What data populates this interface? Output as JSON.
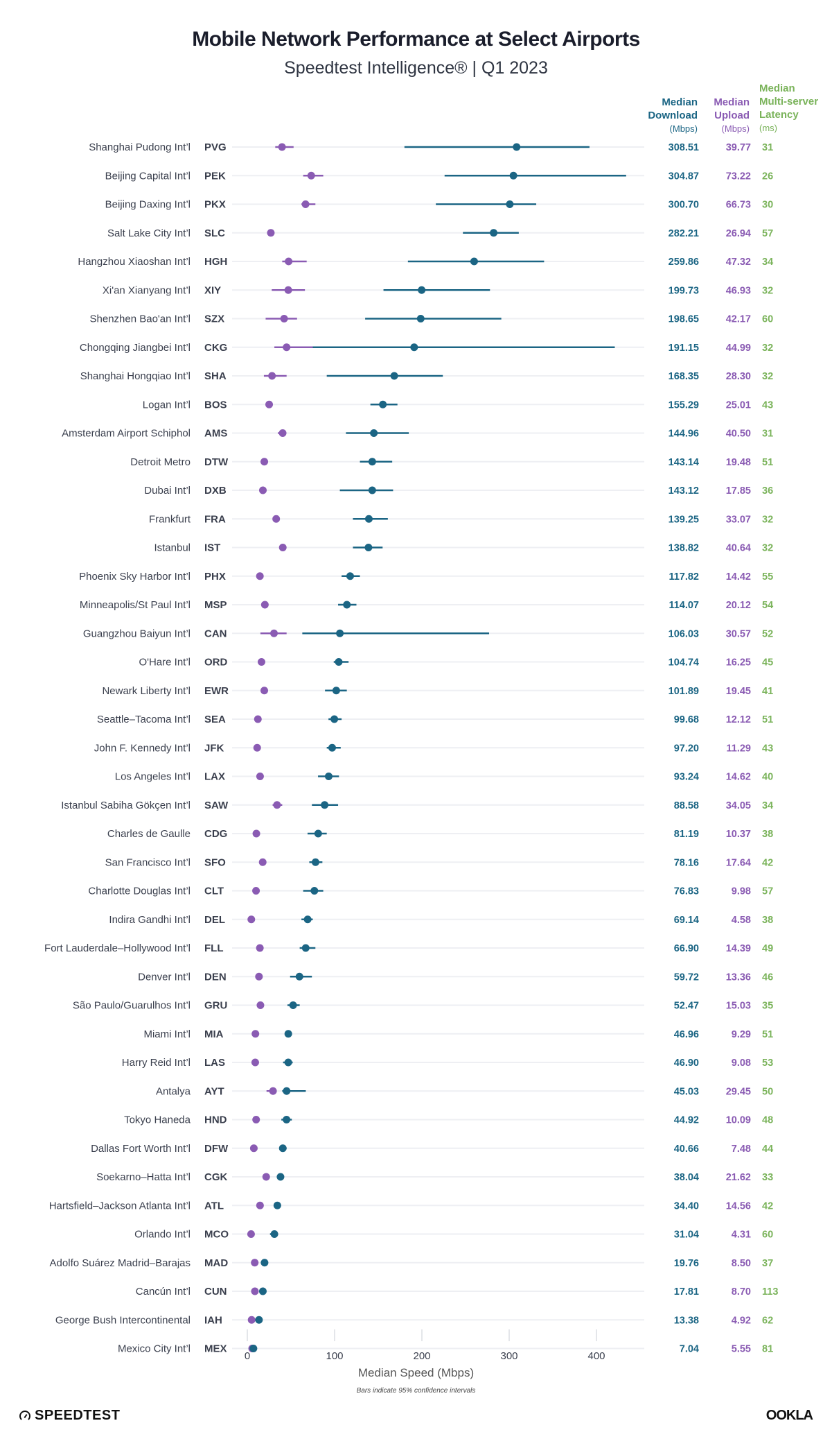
{
  "chart_data": {
    "type": "scatter",
    "subtype": "dot-plot-with-confidence-intervals",
    "title": "Mobile Network Performance at Select Airports",
    "subtitle": "Speedtest Intelligence® | Q1 2023",
    "xlabel": "Median Speed (Mbps)",
    "note": "Bars indicate 95% confidence intervals",
    "xlim": [
      0,
      450
    ],
    "xticks": [
      0,
      100,
      200,
      300,
      400
    ],
    "grid": "horizontal row guides",
    "series_colors": {
      "download": "#1b6584",
      "upload": "#8a5bb3",
      "latency": "#7ab35a"
    },
    "columns": {
      "download": {
        "line1": "Median",
        "line2": "Download",
        "unit": "(Mbps)"
      },
      "upload": {
        "line1": "Median",
        "line2": "Upload",
        "unit": "(Mbps)"
      },
      "latency": {
        "line0": "Median",
        "line1": "Multi-server",
        "line2": "Latency",
        "unit": "(ms)"
      }
    },
    "rows": [
      {
        "name": "Shanghai Pudong Int’l",
        "code": "PVG",
        "download": "308.51",
        "upload": "39.77",
        "latency": "31",
        "dl_ci": [
          180,
          392
        ],
        "ul_ci": [
          32,
          53
        ]
      },
      {
        "name": "Beijing Capital Int’l",
        "code": "PEK",
        "download": "304.87",
        "upload": "73.22",
        "latency": "26",
        "dl_ci": [
          226,
          434
        ],
        "ul_ci": [
          64,
          87
        ]
      },
      {
        "name": "Beijing Daxing Int’l",
        "code": "PKX",
        "download": "300.70",
        "upload": "66.73",
        "latency": "30",
        "dl_ci": [
          216,
          331
        ],
        "ul_ci": [
          62,
          78
        ]
      },
      {
        "name": "Salt Lake City Int’l",
        "code": "SLC",
        "download": "282.21",
        "upload": "26.94",
        "latency": "57",
        "dl_ci": [
          247,
          311
        ],
        "ul_ci": [
          25,
          29
        ]
      },
      {
        "name": "Hangzhou Xiaoshan Int’l",
        "code": "HGH",
        "download": "259.86",
        "upload": "47.32",
        "latency": "34",
        "dl_ci": [
          184,
          340
        ],
        "ul_ci": [
          40,
          68
        ]
      },
      {
        "name": "Xi'an Xianyang Int’l",
        "code": "XIY",
        "download": "199.73",
        "upload": "46.93",
        "latency": "32",
        "dl_ci": [
          156,
          278
        ],
        "ul_ci": [
          28,
          66
        ]
      },
      {
        "name": "Shenzhen Bao'an Int’l",
        "code": "SZX",
        "download": "198.65",
        "upload": "42.17",
        "latency": "60",
        "dl_ci": [
          135,
          291
        ],
        "ul_ci": [
          21,
          57
        ]
      },
      {
        "name": "Chongqing Jiangbei Int’l",
        "code": "CKG",
        "download": "191.15",
        "upload": "44.99",
        "latency": "32",
        "dl_ci": [
          75,
          421
        ],
        "ul_ci": [
          31,
          76
        ]
      },
      {
        "name": "Shanghai Hongqiao Int’l",
        "code": "SHA",
        "download": "168.35",
        "upload": "28.30",
        "latency": "32",
        "dl_ci": [
          91,
          224
        ],
        "ul_ci": [
          19,
          45
        ]
      },
      {
        "name": "Logan Int’l",
        "code": "BOS",
        "download": "155.29",
        "upload": "25.01",
        "latency": "43",
        "dl_ci": [
          141,
          172
        ],
        "ul_ci": [
          23,
          27
        ]
      },
      {
        "name": "Amsterdam Airport Schiphol",
        "code": "AMS",
        "download": "144.96",
        "upload": "40.50",
        "latency": "31",
        "dl_ci": [
          113,
          185
        ],
        "ul_ci": [
          35,
          43
        ]
      },
      {
        "name": "Detroit Metro",
        "code": "DTW",
        "download": "143.14",
        "upload": "19.48",
        "latency": "51",
        "dl_ci": [
          129,
          166
        ],
        "ul_ci": [
          18,
          21
        ]
      },
      {
        "name": "Dubai Int’l",
        "code": "DXB",
        "download": "143.12",
        "upload": "17.85",
        "latency": "36",
        "dl_ci": [
          106,
          167
        ],
        "ul_ci": [
          16,
          20
        ]
      },
      {
        "name": "Frankfurt",
        "code": "FRA",
        "download": "139.25",
        "upload": "33.07",
        "latency": "32",
        "dl_ci": [
          121,
          161
        ],
        "ul_ci": [
          31,
          35
        ]
      },
      {
        "name": "Istanbul",
        "code": "IST",
        "download": "138.82",
        "upload": "40.64",
        "latency": "32",
        "dl_ci": [
          121,
          155
        ],
        "ul_ci": [
          38,
          43
        ]
      },
      {
        "name": "Phoenix Sky Harbor Int’l",
        "code": "PHX",
        "download": "117.82",
        "upload": "14.42",
        "latency": "55",
        "dl_ci": [
          108,
          129
        ],
        "ul_ci": [
          13,
          16
        ]
      },
      {
        "name": "Minneapolis/St Paul Int’l",
        "code": "MSP",
        "download": "114.07",
        "upload": "20.12",
        "latency": "54",
        "dl_ci": [
          104,
          125
        ],
        "ul_ci": [
          18,
          22
        ]
      },
      {
        "name": "Guangzhou Baiyun Int’l",
        "code": "CAN",
        "download": "106.03",
        "upload": "30.57",
        "latency": "52",
        "dl_ci": [
          63,
          277
        ],
        "ul_ci": [
          15,
          45
        ]
      },
      {
        "name": "O'Hare Int’l",
        "code": "ORD",
        "download": "104.74",
        "upload": "16.25",
        "latency": "45",
        "dl_ci": [
          99,
          116
        ],
        "ul_ci": [
          15,
          18
        ]
      },
      {
        "name": "Newark Liberty Int’l",
        "code": "EWR",
        "download": "101.89",
        "upload": "19.45",
        "latency": "41",
        "dl_ci": [
          89,
          114
        ],
        "ul_ci": [
          18,
          21
        ]
      },
      {
        "name": "Seattle–Tacoma Int’l",
        "code": "SEA",
        "download": "99.68",
        "upload": "12.12",
        "latency": "51",
        "dl_ci": [
          93,
          108
        ],
        "ul_ci": [
          11,
          13
        ]
      },
      {
        "name": "John F. Kennedy Int’l",
        "code": "JFK",
        "download": "97.20",
        "upload": "11.29",
        "latency": "43",
        "dl_ci": [
          91,
          107
        ],
        "ul_ci": [
          10,
          12
        ]
      },
      {
        "name": "Los Angeles Int’l",
        "code": "LAX",
        "download": "93.24",
        "upload": "14.62",
        "latency": "40",
        "dl_ci": [
          81,
          105
        ],
        "ul_ci": [
          13,
          16
        ]
      },
      {
        "name": "Istanbul Sabiha Gökçen Int’l",
        "code": "SAW",
        "download": "88.58",
        "upload": "34.05",
        "latency": "34",
        "dl_ci": [
          74,
          104
        ],
        "ul_ci": [
          29,
          40
        ]
      },
      {
        "name": "Charles de Gaulle",
        "code": "CDG",
        "download": "81.19",
        "upload": "10.37",
        "latency": "38",
        "dl_ci": [
          69,
          91
        ],
        "ul_ci": [
          9,
          11
        ]
      },
      {
        "name": "San Francisco Int’l",
        "code": "SFO",
        "download": "78.16",
        "upload": "17.64",
        "latency": "42",
        "dl_ci": [
          71,
          86
        ],
        "ul_ci": [
          16,
          19
        ]
      },
      {
        "name": "Charlotte Douglas Int’l",
        "code": "CLT",
        "download": "76.83",
        "upload": "9.98",
        "latency": "57",
        "dl_ci": [
          64,
          87
        ],
        "ul_ci": [
          9,
          11
        ]
      },
      {
        "name": "Indira Gandhi Int’l",
        "code": "DEL",
        "download": "69.14",
        "upload": "4.58",
        "latency": "38",
        "dl_ci": [
          62,
          75
        ],
        "ul_ci": [
          4,
          5
        ]
      },
      {
        "name": "Fort Lauderdale–Hollywood Int’l",
        "code": "FLL",
        "download": "66.90",
        "upload": "14.39",
        "latency": "49",
        "dl_ci": [
          60,
          78
        ],
        "ul_ci": [
          13,
          16
        ]
      },
      {
        "name": "Denver Int’l",
        "code": "DEN",
        "download": "59.72",
        "upload": "13.36",
        "latency": "46",
        "dl_ci": [
          49,
          74
        ],
        "ul_ci": [
          12,
          15
        ]
      },
      {
        "name": "São Paulo/Guarulhos Int’l",
        "code": "GRU",
        "download": "52.47",
        "upload": "15.03",
        "latency": "35",
        "dl_ci": [
          46,
          60
        ],
        "ul_ci": [
          14,
          16
        ]
      },
      {
        "name": "Miami Int’l",
        "code": "MIA",
        "download": "46.96",
        "upload": "9.29",
        "latency": "51",
        "dl_ci": [
          44,
          50
        ],
        "ul_ci": [
          8,
          10
        ]
      },
      {
        "name": "Harry Reid Int’l",
        "code": "LAS",
        "download": "46.90",
        "upload": "9.08",
        "latency": "53",
        "dl_ci": [
          41,
          52
        ],
        "ul_ci": [
          8,
          10
        ]
      },
      {
        "name": "Antalya",
        "code": "AYT",
        "download": "45.03",
        "upload": "29.45",
        "latency": "50",
        "dl_ci": [
          40,
          67
        ],
        "ul_ci": [
          22,
          33
        ]
      },
      {
        "name": "Tokyo Haneda",
        "code": "HND",
        "download": "44.92",
        "upload": "10.09",
        "latency": "48",
        "dl_ci": [
          39,
          51
        ],
        "ul_ci": [
          9,
          11
        ]
      },
      {
        "name": "Dallas Fort Worth Int’l",
        "code": "DFW",
        "download": "40.66",
        "upload": "7.48",
        "latency": "44",
        "dl_ci": [
          37,
          45
        ],
        "ul_ci": [
          7,
          8
        ]
      },
      {
        "name": "Soekarno–Hatta Int’l",
        "code": "CGK",
        "download": "38.04",
        "upload": "21.62",
        "latency": "33",
        "dl_ci": [
          36,
          40
        ],
        "ul_ci": [
          20,
          23
        ]
      },
      {
        "name": "Hartsfield–Jackson Atlanta Int’l",
        "code": "ATL",
        "download": "34.40",
        "upload": "14.56",
        "latency": "42",
        "dl_ci": [
          32,
          36
        ],
        "ul_ci": [
          14,
          15
        ]
      },
      {
        "name": "Orlando Int’l",
        "code": "MCO",
        "download": "31.04",
        "upload": "4.31",
        "latency": "60",
        "dl_ci": [
          26,
          34
        ],
        "ul_ci": [
          4,
          5
        ]
      },
      {
        "name": "Adolfo Suárez Madrid–Barajas",
        "code": "MAD",
        "download": "19.76",
        "upload": "8.50",
        "latency": "37",
        "dl_ci": [
          18,
          21
        ],
        "ul_ci": [
          8,
          9
        ]
      },
      {
        "name": "Cancún Int’l",
        "code": "CUN",
        "download": "17.81",
        "upload": "8.70",
        "latency": "113",
        "dl_ci": [
          16,
          19
        ],
        "ul_ci": [
          8,
          9
        ]
      },
      {
        "name": "George Bush Intercontinental",
        "code": "IAH",
        "download": "13.38",
        "upload": "4.92",
        "latency": "62",
        "dl_ci": [
          12,
          15
        ],
        "ul_ci": [
          4,
          6
        ]
      },
      {
        "name": "Mexico City Int’l",
        "code": "MEX",
        "download": "7.04",
        "upload": "5.55",
        "latency": "81",
        "dl_ci": [
          6,
          8
        ],
        "ul_ci": [
          5,
          6
        ]
      }
    ]
  },
  "footer": {
    "speedtest_logo": "SPEEDTEST",
    "ookla_logo": "OOKLA"
  }
}
